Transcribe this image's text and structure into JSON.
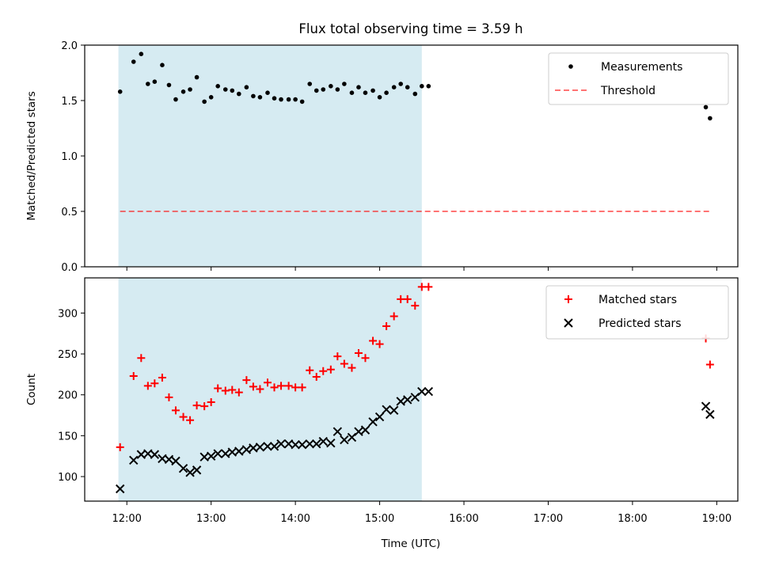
{
  "chart_data": {
    "title": "Flux total observing time = 3.59 h",
    "xlabel": "Time (UTC)",
    "xlim": [
      11.5,
      19.25
    ],
    "xticks": [
      12,
      13,
      14,
      15,
      16,
      17,
      18,
      19
    ],
    "xticklabels": [
      "12:00",
      "13:00",
      "14:00",
      "15:00",
      "16:00",
      "17:00",
      "18:00",
      "19:00"
    ],
    "shaded_span": {
      "x0": 11.9,
      "x1": 15.5,
      "color": "#add8e6"
    },
    "panels": [
      {
        "type": "scatter",
        "ylabel": "Matched/Predicted stars",
        "ylim": [
          0,
          2.0
        ],
        "yticks": [
          0.0,
          0.5,
          1.0,
          1.5,
          2.0
        ],
        "yticklabels": [
          "0.0",
          "0.5",
          "1.0",
          "1.5",
          "2.0"
        ],
        "legend_position": "upper-right",
        "series": [
          {
            "name": "Measurements",
            "marker": "dot",
            "color": "#000000",
            "x": [
              11.92,
              12.08,
              12.17,
              12.25,
              12.33,
              12.42,
              12.5,
              12.58,
              12.67,
              12.75,
              12.83,
              12.92,
              13.0,
              13.08,
              13.17,
              13.25,
              13.33,
              13.42,
              13.5,
              13.58,
              13.67,
              13.75,
              13.83,
              13.92,
              14.0,
              14.08,
              14.17,
              14.25,
              14.33,
              14.42,
              14.5,
              14.58,
              14.67,
              14.75,
              14.83,
              14.92,
              15.0,
              15.08,
              15.17,
              15.25,
              15.33,
              15.42,
              15.5,
              15.58,
              18.87,
              18.92
            ],
            "y": [
              1.58,
              1.85,
              1.92,
              1.65,
              1.67,
              1.82,
              1.64,
              1.51,
              1.58,
              1.6,
              1.71,
              1.49,
              1.53,
              1.63,
              1.6,
              1.59,
              1.56,
              1.62,
              1.54,
              1.53,
              1.57,
              1.52,
              1.51,
              1.51,
              1.51,
              1.49,
              1.65,
              1.59,
              1.6,
              1.63,
              1.6,
              1.65,
              1.57,
              1.62,
              1.57,
              1.59,
              1.53,
              1.57,
              1.62,
              1.65,
              1.62,
              1.56,
              1.63,
              1.63,
              1.44,
              1.34
            ]
          },
          {
            "name": "Threshold",
            "type": "line",
            "style": "dashed",
            "color": "#ff0000",
            "x": [
              11.92,
              18.92
            ],
            "y": [
              0.5,
              0.5
            ]
          }
        ]
      },
      {
        "type": "scatter",
        "ylabel": "Count",
        "ylim": [
          70,
          343
        ],
        "yticks": [
          100,
          150,
          200,
          250,
          300
        ],
        "yticklabels": [
          "100",
          "150",
          "200",
          "250",
          "300"
        ],
        "legend_position": "upper-right",
        "series": [
          {
            "name": "Matched stars",
            "marker": "plus",
            "color": "#ff0000",
            "x": [
              11.92,
              12.08,
              12.17,
              12.25,
              12.33,
              12.42,
              12.5,
              12.58,
              12.67,
              12.75,
              12.83,
              12.92,
              13.0,
              13.08,
              13.17,
              13.25,
              13.33,
              13.42,
              13.5,
              13.58,
              13.67,
              13.75,
              13.83,
              13.92,
              14.0,
              14.08,
              14.17,
              14.25,
              14.33,
              14.42,
              14.5,
              14.58,
              14.67,
              14.75,
              14.83,
              14.92,
              15.0,
              15.08,
              15.17,
              15.25,
              15.33,
              15.42,
              15.5,
              15.58,
              18.87,
              18.92
            ],
            "y": [
              136,
              223,
              245,
              211,
              214,
              221,
              197,
              181,
              173,
              169,
              187,
              186,
              191,
              208,
              205,
              206,
              203,
              218,
              210,
              207,
              215,
              209,
              211,
              211,
              209,
              209,
              230,
              222,
              229,
              231,
              247,
              238,
              233,
              251,
              245,
              266,
              262,
              284,
              296,
              317,
              317,
              309,
              332,
              332,
              269,
              237
            ]
          },
          {
            "name": "Predicted stars",
            "marker": "x",
            "color": "#000000",
            "x": [
              11.92,
              12.08,
              12.17,
              12.25,
              12.33,
              12.42,
              12.5,
              12.58,
              12.67,
              12.75,
              12.83,
              12.92,
              13.0,
              13.08,
              13.17,
              13.25,
              13.33,
              13.42,
              13.5,
              13.58,
              13.67,
              13.75,
              13.83,
              13.92,
              14.0,
              14.08,
              14.17,
              14.25,
              14.33,
              14.42,
              14.5,
              14.58,
              14.67,
              14.75,
              14.83,
              14.92,
              15.0,
              15.08,
              15.17,
              15.25,
              15.33,
              15.42,
              15.5,
              15.58,
              18.87,
              18.92
            ],
            "y": [
              85,
              120,
              127,
              128,
              127,
              122,
              121,
              119,
              110,
              105,
              108,
              124,
              125,
              128,
              128,
              130,
              131,
              133,
              135,
              136,
              137,
              137,
              140,
              140,
              139,
              139,
              140,
              140,
              143,
              141,
              155,
              145,
              148,
              155,
              157,
              167,
              173,
              182,
              181,
              192,
              194,
              197,
              204,
              204,
              186,
              176
            ]
          }
        ]
      }
    ]
  }
}
